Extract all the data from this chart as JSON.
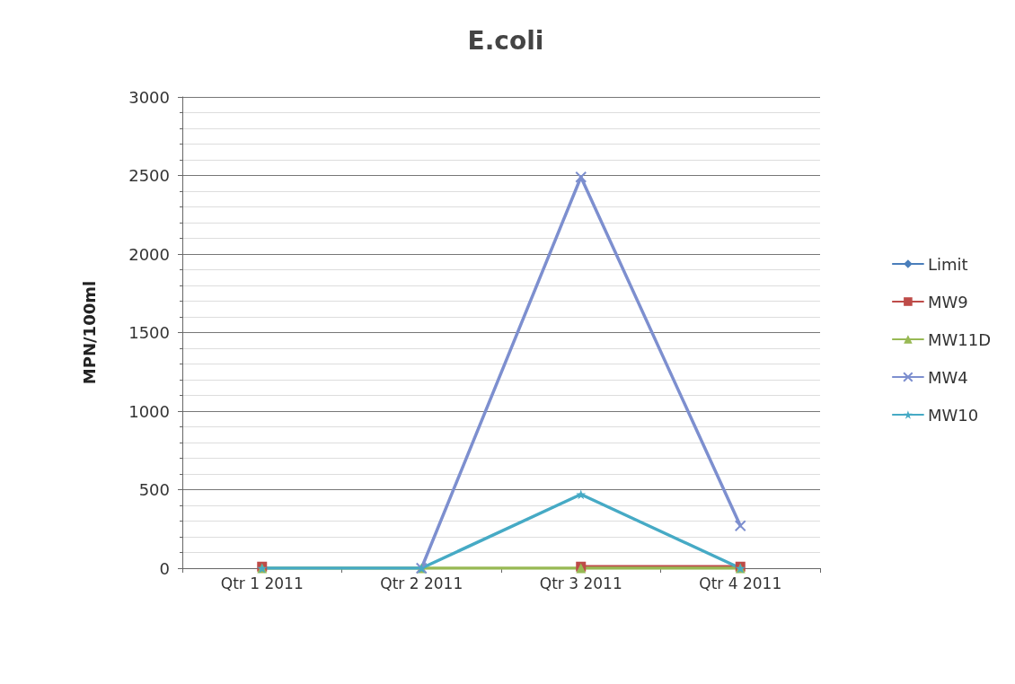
{
  "chart_data": {
    "type": "line",
    "title": "E.coli",
    "ylabel": "MPN/100ml",
    "categories": [
      "Qtr 1 2011",
      "Qtr 2 2011",
      "Qtr 3 2011",
      "Qtr 4 2011"
    ],
    "series": [
      {
        "name": "Limit",
        "color": "#4a7ebb",
        "marker": "diamond",
        "values": [
          null,
          null,
          null,
          null
        ]
      },
      {
        "name": "MW9",
        "color": "#be4b48",
        "marker": "square",
        "values": [
          10,
          null,
          10,
          10
        ]
      },
      {
        "name": "MW11D",
        "color": "#98b954",
        "marker": "triangle",
        "values": [
          0,
          0,
          0,
          0
        ]
      },
      {
        "name": "MW4",
        "color": "#7d8fcf",
        "marker": "cross",
        "values": [
          null,
          0,
          2490,
          270
        ]
      },
      {
        "name": "MW10",
        "color": "#46aac5",
        "marker": "star",
        "values": [
          0,
          0,
          470,
          0
        ]
      }
    ],
    "ylim": [
      0,
      3000
    ],
    "yticks": [
      0,
      500,
      1000,
      1500,
      2000,
      2500,
      3000
    ],
    "grid": true,
    "legend": "right"
  }
}
